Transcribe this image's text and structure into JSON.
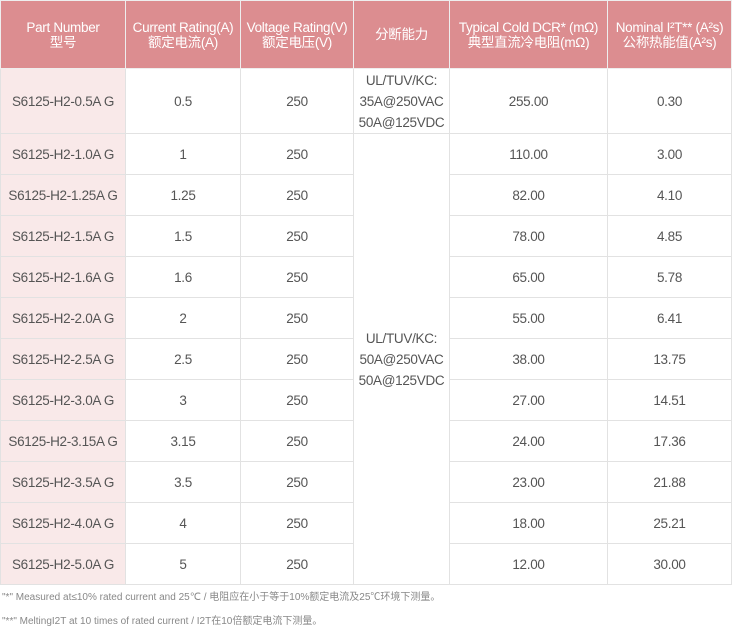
{
  "headers": [
    {
      "en": "Part Number",
      "cn": "型号"
    },
    {
      "en": "Current Rating(A)",
      "cn": "额定电流(A)"
    },
    {
      "en": "Voltage Rating(V)",
      "cn": "额定电压(V)"
    },
    {
      "en": "分断能力",
      "cn": ""
    },
    {
      "en": "Typical Cold DCR* (mΩ)",
      "cn": "典型直流冷电阻(mΩ)"
    },
    {
      "en": "Nominal I²T** (A²s)",
      "cn": "公称热能值(A²s)"
    }
  ],
  "breaking": [
    [
      "UL/TUV/KC:",
      "35A@250VAC",
      "50A@125VDC"
    ],
    [
      "UL/TUV/KC:",
      "50A@250VAC",
      "50A@125VDC"
    ]
  ],
  "rows": [
    [
      "S6125-H2-0.5A G",
      "0.5",
      "250",
      "255.00",
      "0.30"
    ],
    [
      "S6125-H2-1.0A G",
      "1",
      "250",
      "110.00",
      "3.00"
    ],
    [
      "S6125-H2-1.25A G",
      "1.25",
      "250",
      "82.00",
      "4.10"
    ],
    [
      "S6125-H2-1.5A G",
      "1.5",
      "250",
      "78.00",
      "4.85"
    ],
    [
      "S6125-H2-1.6A G",
      "1.6",
      "250",
      "65.00",
      "5.78"
    ],
    [
      "S6125-H2-2.0A G",
      "2",
      "250",
      "55.00",
      "6.41"
    ],
    [
      "S6125-H2-2.5A G",
      "2.5",
      "250",
      "38.00",
      "13.75"
    ],
    [
      "S6125-H2-3.0A G",
      "3",
      "250",
      "27.00",
      "14.51"
    ],
    [
      "S6125-H2-3.15A G",
      "3.15",
      "250",
      "24.00",
      "17.36"
    ],
    [
      "S6125-H2-3.5A G",
      "3.5",
      "250",
      "23.00",
      "21.88"
    ],
    [
      "S6125-H2-4.0A G",
      "4",
      "250",
      "18.00",
      "25.21"
    ],
    [
      "S6125-H2-5.0A G",
      "5",
      "250",
      "12.00",
      "30.00"
    ]
  ],
  "notes": [
    "\"*\" Measured at≤10% rated current and 25℃ / 电阻应在小于等于10%额定电流及25℃环境下测量。",
    "\"**\" MeltingI2T at 10 times of rated current / I2T在10倍额定电流下测量。"
  ],
  "colors": {
    "header_bg": "#dc8d90",
    "first_col_bg": "#f9e9e9"
  }
}
